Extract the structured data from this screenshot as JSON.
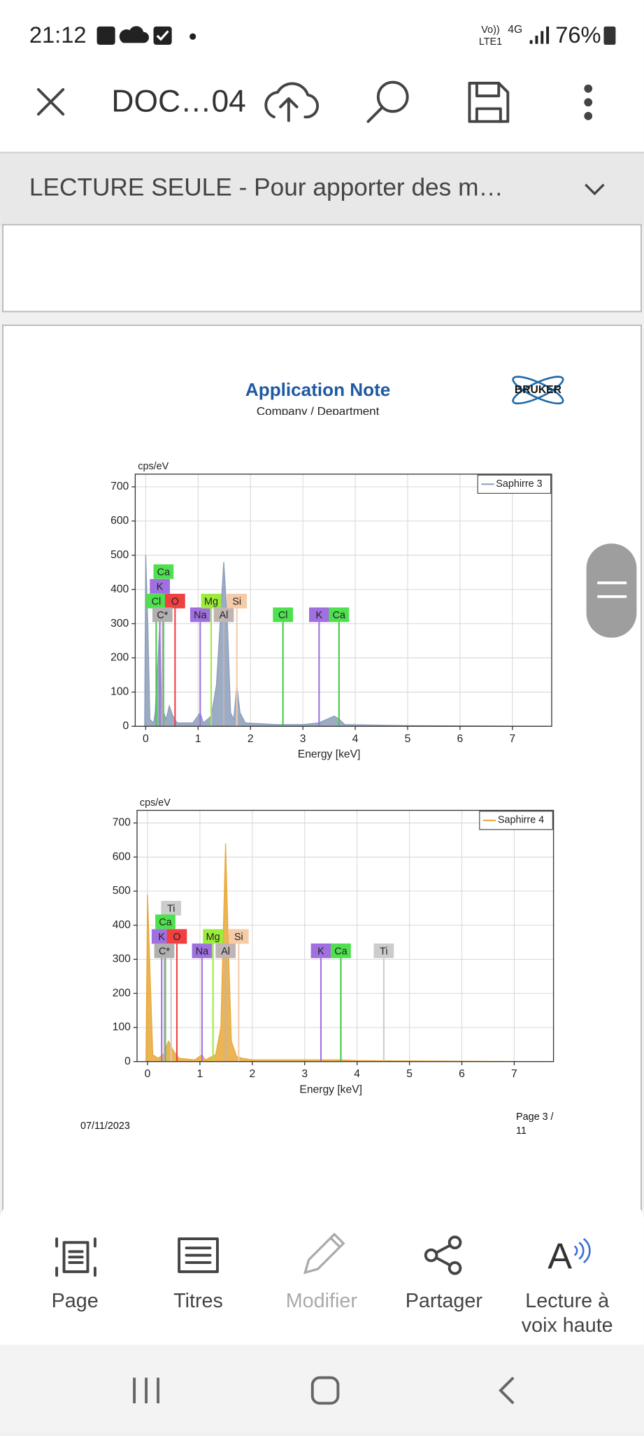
{
  "status_bar": {
    "time": "21:12",
    "network_top": "Vo))",
    "network_bottom": "LTE1",
    "data": "4G",
    "battery": "76%"
  },
  "toolbar": {
    "title": "DOC…04"
  },
  "banner": {
    "text": "LECTURE SEULE - Pour apporter des m…"
  },
  "document": {
    "title": "Application Note",
    "subtitle": "Company / Department",
    "logo": "BRUKER",
    "date": "07/11/2023",
    "page_line1": "Page 3 /",
    "page_line2": "11"
  },
  "chart_data": [
    {
      "type": "area",
      "x_label": "Energy [keV]",
      "y_label": "cps/eV",
      "xlim": [
        -0.2,
        7.75
      ],
      "ylim": [
        0,
        737
      ],
      "xticks": [
        0,
        1,
        2,
        3,
        4,
        5,
        6,
        7
      ],
      "yticks": [
        0,
        100,
        200,
        300,
        400,
        500,
        600,
        700
      ],
      "grid": true,
      "legend": "upper right",
      "series": [
        {
          "name": "Saphirre 3",
          "color": "#8c9dbb",
          "x": [
            -0.1,
            -0.02,
            0,
            0.04,
            0.08,
            0.15,
            0.18,
            0.27,
            0.3,
            0.39,
            0.45,
            0.52,
            0.6,
            0.9,
            1.04,
            1.1,
            1.25,
            1.35,
            1.42,
            1.49,
            1.56,
            1.62,
            1.68,
            1.74,
            1.8,
            1.9,
            2.5,
            3.0,
            3.3,
            3.6,
            3.7,
            3.8,
            5,
            7.7
          ],
          "values": [
            0,
            0,
            500,
            300,
            20,
            10,
            40,
            300,
            60,
            20,
            60,
            30,
            10,
            10,
            40,
            10,
            30,
            120,
            300,
            480,
            300,
            40,
            20,
            120,
            40,
            10,
            5,
            5,
            10,
            30,
            20,
            5,
            2,
            0
          ]
        }
      ],
      "annotations": [
        {
          "label": "Ca",
          "x": 0.34,
          "y": 452,
          "color": "#4fe04f"
        },
        {
          "label": "K",
          "x": 0.27,
          "y": 409,
          "color": "#a070e0"
        },
        {
          "label": "Cl",
          "x": 0.2,
          "y": 366,
          "color": "#4fe04f"
        },
        {
          "label": "O",
          "x": 0.56,
          "y": 366,
          "color": "#f04040"
        },
        {
          "label": "C*",
          "x": 0.32,
          "y": 326,
          "color": "#b0b0b0"
        },
        {
          "label": "Na",
          "x": 1.04,
          "y": 326,
          "color": "#a070e0"
        },
        {
          "label": "Mg",
          "x": 1.25,
          "y": 366,
          "color": "#9cec3c"
        },
        {
          "label": "Al",
          "x": 1.49,
          "y": 326,
          "color": "#c0b4b4"
        },
        {
          "label": "Si",
          "x": 1.74,
          "y": 366,
          "color": "#f5cba8"
        },
        {
          "label": "Cl",
          "x": 2.62,
          "y": 326,
          "color": "#4fe04f"
        },
        {
          "label": "K",
          "x": 3.31,
          "y": 326,
          "color": "#a070e0"
        },
        {
          "label": "Ca",
          "x": 3.69,
          "y": 326,
          "color": "#4fe04f"
        }
      ]
    },
    {
      "type": "area",
      "x_label": "Energy [keV]",
      "y_label": "cps/eV",
      "xlim": [
        -0.2,
        7.75
      ],
      "ylim": [
        0,
        737
      ],
      "xticks": [
        0,
        1,
        2,
        3,
        4,
        5,
        6,
        7
      ],
      "yticks": [
        0,
        100,
        200,
        300,
        400,
        500,
        600,
        700
      ],
      "grid": true,
      "legend": "upper right",
      "series": [
        {
          "name": "Saphirre 4",
          "color": "#e8a838",
          "x": [
            -0.1,
            -0.03,
            0,
            0.05,
            0.1,
            0.2,
            0.3,
            0.4,
            0.5,
            0.6,
            0.9,
            1.04,
            1.1,
            1.3,
            1.4,
            1.45,
            1.49,
            1.54,
            1.6,
            1.7,
            1.8,
            2.0,
            3.3,
            3.7,
            4.0,
            5,
            7.7
          ],
          "values": [
            0,
            0,
            490,
            250,
            20,
            10,
            20,
            60,
            30,
            10,
            5,
            20,
            5,
            20,
            100,
            400,
            640,
            350,
            60,
            15,
            10,
            5,
            5,
            5,
            3,
            2,
            0
          ]
        }
      ],
      "annotations": [
        {
          "label": "Ti",
          "x": 0.45,
          "y": 450,
          "color": "#cccccc"
        },
        {
          "label": "Ca",
          "x": 0.34,
          "y": 410,
          "color": "#4fe04f"
        },
        {
          "label": "K",
          "x": 0.27,
          "y": 367,
          "color": "#a070e0"
        },
        {
          "label": "O",
          "x": 0.56,
          "y": 367,
          "color": "#f04040"
        },
        {
          "label": "C*",
          "x": 0.32,
          "y": 325,
          "color": "#b0b0b0"
        },
        {
          "label": "Na",
          "x": 1.04,
          "y": 325,
          "color": "#a070e0"
        },
        {
          "label": "Mg",
          "x": 1.25,
          "y": 367,
          "color": "#9cec3c"
        },
        {
          "label": "Al",
          "x": 1.49,
          "y": 325,
          "color": "#c0b4b4"
        },
        {
          "label": "Si",
          "x": 1.74,
          "y": 367,
          "color": "#f5cba8"
        },
        {
          "label": "K",
          "x": 3.31,
          "y": 325,
          "color": "#a070e0"
        },
        {
          "label": "Ca",
          "x": 3.69,
          "y": 325,
          "color": "#4fe04f"
        },
        {
          "label": "Ti",
          "x": 4.51,
          "y": 325,
          "color": "#cccccc"
        }
      ]
    }
  ],
  "bottom_bar": {
    "items": [
      "Page",
      "Titres",
      "Modifier",
      "Partager",
      "Lecture à"
    ],
    "extra_line": "voix haute"
  }
}
